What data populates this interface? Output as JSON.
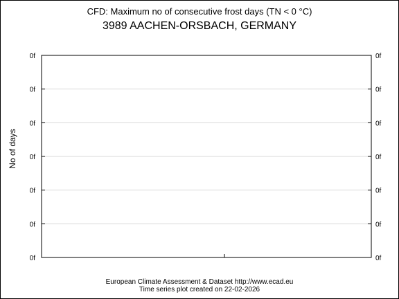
{
  "chart_data": {
    "type": "line",
    "title": "CFD: Maximum no of consecutive frost days (TN < 0 °C)",
    "subtitle": "3989 AACHEN-ORSBACH, GERMANY",
    "xlabel": "",
    "ylabel": "No of days",
    "yticks": [
      "0f",
      "0f",
      "0f",
      "0f",
      "0f",
      "0f",
      "0f"
    ],
    "series": [],
    "grid": true
  },
  "footer": {
    "line1": "European Climate Assessment & Dataset  http://www.ecad.eu",
    "line2": "Time series plot created on 22-02-2026"
  },
  "colors": {
    "grid": "#d9d9d9",
    "axis": "#000000",
    "background": "#ffffff"
  }
}
